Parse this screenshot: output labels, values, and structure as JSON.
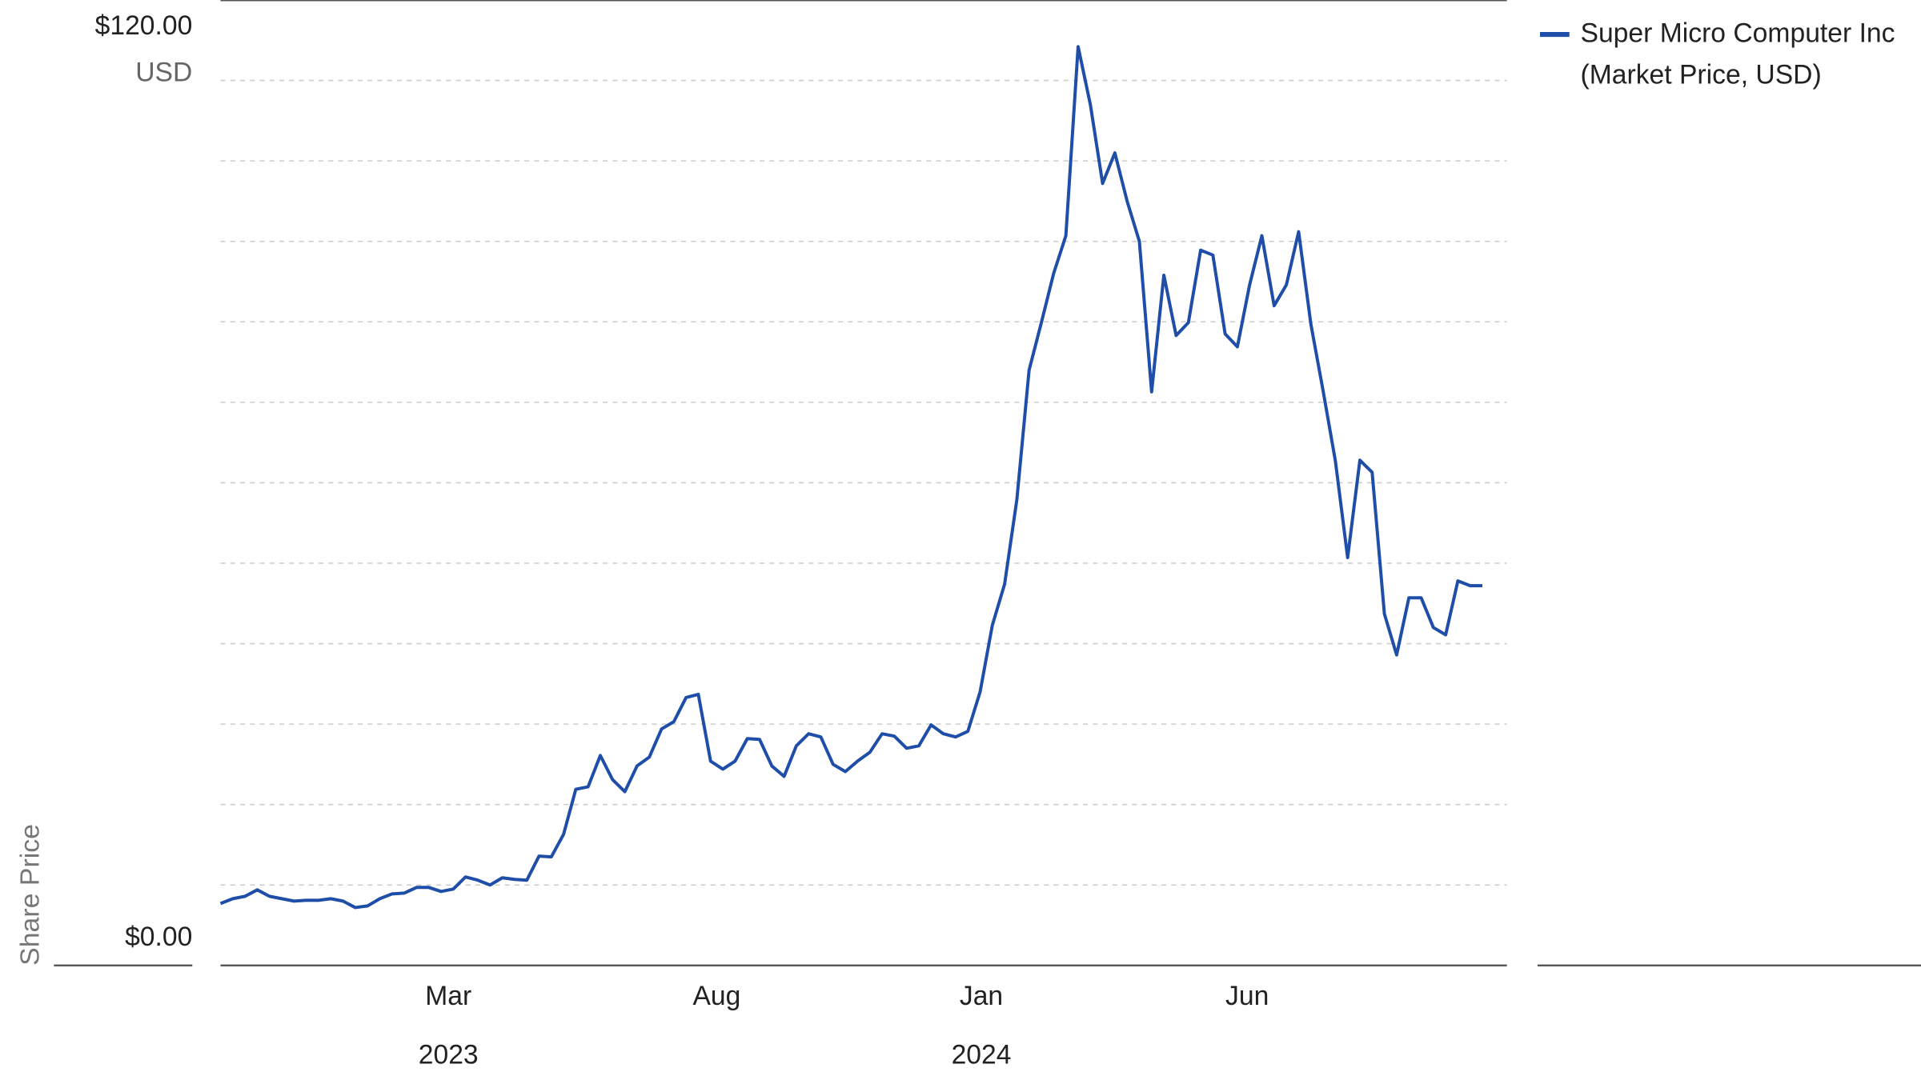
{
  "chart_data": {
    "type": "line",
    "y_label": "Share Price",
    "y_unit": "USD",
    "series": [
      {
        "name": "Super Micro Computer Inc (Market Price, USD)",
        "color": "#1f4ea8",
        "values": [
          7.7,
          8.3,
          8.6,
          9.4,
          8.6,
          8.3,
          8.0,
          8.1,
          8.1,
          8.3,
          8.0,
          7.2,
          7.4,
          8.3,
          8.9,
          9.0,
          9.7,
          9.7,
          9.2,
          9.5,
          11.0,
          10.6,
          10.0,
          10.9,
          10.7,
          10.6,
          13.6,
          13.5,
          16.3,
          21.9,
          22.2,
          26.1,
          23.1,
          21.6,
          24.8,
          25.9,
          29.4,
          30.3,
          33.3,
          33.7,
          25.4,
          24.4,
          25.4,
          28.2,
          28.1,
          24.8,
          23.5,
          27.3,
          28.8,
          28.4,
          25.0,
          24.1,
          25.4,
          26.5,
          28.8,
          28.5,
          27.0,
          27.3,
          29.9,
          28.8,
          28.4,
          29.1,
          34.0,
          42.3,
          47.4,
          57.9,
          74.0,
          79.9,
          86.0,
          90.7,
          114.2,
          107.0,
          97.2,
          101.0,
          95.0,
          90.0,
          71.3,
          85.8,
          78.3,
          79.9,
          88.9,
          88.3,
          78.5,
          76.9,
          84.6,
          90.7,
          82.0,
          84.6,
          91.2,
          79.7,
          71.4,
          62.7,
          50.7,
          62.8,
          61.3,
          43.7,
          38.6,
          45.7,
          45.7,
          42.0,
          41.1,
          47.8,
          47.2,
          47.2
        ]
      }
    ],
    "xlim": [
      0,
      105
    ],
    "xticks": [
      {
        "value": 18.6,
        "label": "Mar"
      },
      {
        "value": 40.5,
        "label": "Aug"
      },
      {
        "value": 62.1,
        "label": "Jan"
      },
      {
        "value": 83.8,
        "label": "Jun"
      }
    ],
    "year_ticks": [
      {
        "value": 18.6,
        "label": "2023"
      },
      {
        "value": 62.1,
        "label": "2024"
      }
    ],
    "ylim": [
      0,
      120
    ],
    "yticks": [
      {
        "value": 0,
        "label": "$0.00"
      },
      {
        "value": 120,
        "label": "$120.00"
      }
    ],
    "gridlines": [
      10,
      20,
      30,
      40,
      50,
      60,
      70,
      80,
      90,
      100,
      110
    ],
    "grid": true
  }
}
